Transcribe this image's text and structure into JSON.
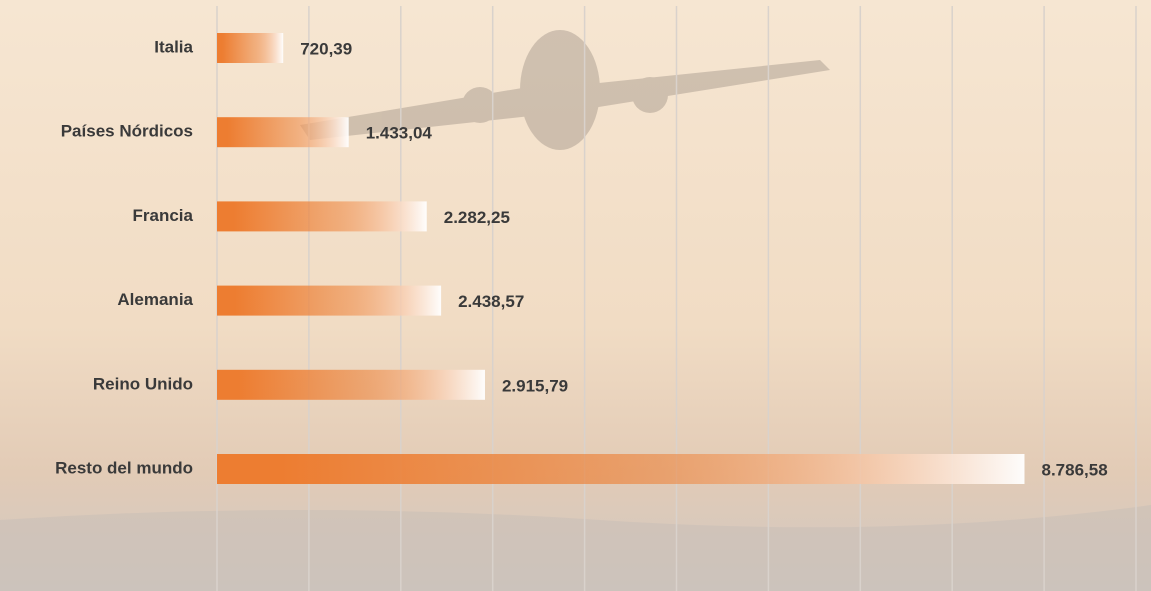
{
  "chart_data": {
    "type": "bar",
    "orientation": "horizontal",
    "categories": [
      "Italia",
      "Países Nórdicos",
      "Francia",
      "Alemania",
      "Reino Unido",
      "Resto del mundo"
    ],
    "values": [
      720.39,
      1433.04,
      2282.25,
      2438.57,
      2915.79,
      8786.58
    ],
    "value_labels": [
      "720,39",
      "1.433,04",
      "2.282,25",
      "2.438,57",
      "2.915,79",
      "8.786,58"
    ],
    "color": "#ED7D31",
    "xlim": [
      0,
      10000
    ],
    "xticks": [
      0,
      1000,
      2000,
      3000,
      4000,
      5000,
      6000,
      7000,
      8000,
      9000,
      10000
    ],
    "grid": true
  }
}
